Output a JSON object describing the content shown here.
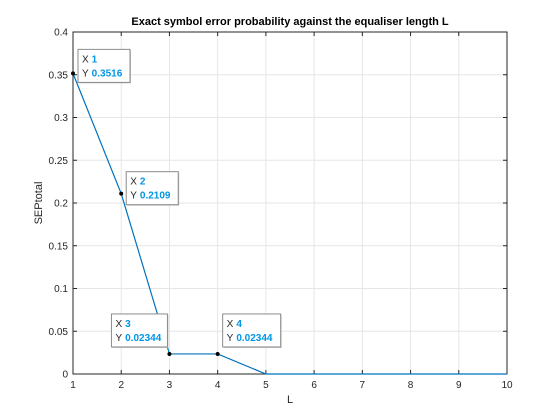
{
  "chart_data": {
    "type": "line",
    "title": "Exact symbol error probability against the equaliser length L",
    "xlabel": "L",
    "ylabel": "SEPtotal",
    "xlim": [
      1,
      10
    ],
    "ylim": [
      0,
      0.4
    ],
    "x_ticks": [
      "1",
      "2",
      "3",
      "4",
      "5",
      "6",
      "7",
      "8",
      "9",
      "10"
    ],
    "y_ticks": [
      "0",
      "0.05",
      "0.1",
      "0.15",
      "0.2",
      "0.25",
      "0.3",
      "0.35",
      "0.4"
    ],
    "grid": true,
    "series": [
      {
        "x": [
          1,
          2,
          3,
          4,
          5,
          6,
          7,
          8,
          9,
          10
        ],
        "y": [
          0.3516,
          0.2109,
          0.02344,
          0.02344,
          0,
          0,
          0,
          0,
          0,
          0
        ]
      }
    ],
    "datatips": [
      {
        "x_label": "X",
        "x_value": "1",
        "y_label": "Y",
        "y_value": "0.3516",
        "point_x": 1,
        "point_y": 0.3516
      },
      {
        "x_label": "X",
        "x_value": "2",
        "y_label": "Y",
        "y_value": "0.2109",
        "point_x": 2,
        "point_y": 0.2109
      },
      {
        "x_label": "X",
        "x_value": "3",
        "y_label": "Y",
        "y_value": "0.02344",
        "point_x": 3,
        "point_y": 0.02344
      },
      {
        "x_label": "X",
        "x_value": "4",
        "y_label": "Y",
        "y_value": "0.02344",
        "point_x": 4,
        "point_y": 0.02344
      }
    ],
    "colors": {
      "line": "#0072bd",
      "grid": "#e6e6e6",
      "axis": "#262626",
      "tip_value": "#0095e6",
      "tip_border": "#8c8c8c",
      "tip_bg": "#ffffff"
    }
  }
}
